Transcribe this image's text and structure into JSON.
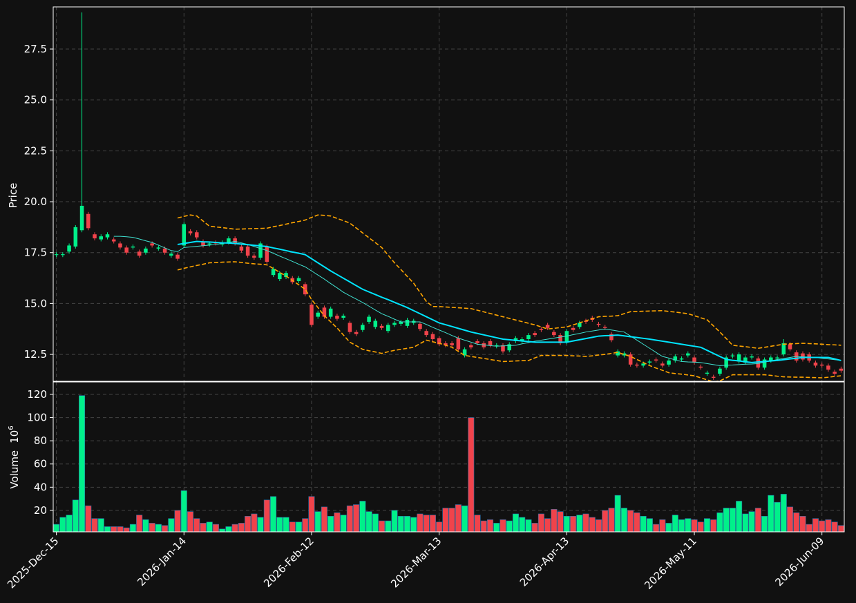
{
  "chart_data": {
    "type": "candlestick",
    "categories": [
      "2025-Dec-15",
      null,
      null,
      null,
      null,
      null,
      null,
      null,
      null,
      null,
      null,
      null,
      null,
      null,
      null,
      null,
      null,
      null,
      null,
      null,
      "2026-Jan-14",
      null,
      null,
      null,
      null,
      null,
      null,
      null,
      null,
      null,
      null,
      null,
      null,
      null,
      null,
      null,
      null,
      null,
      null,
      null,
      "2026-Feb-12",
      null,
      null,
      null,
      null,
      null,
      null,
      null,
      null,
      null,
      null,
      null,
      null,
      null,
      null,
      null,
      null,
      null,
      null,
      null,
      "2026-Mar-13",
      null,
      null,
      null,
      null,
      null,
      null,
      null,
      null,
      null,
      null,
      null,
      null,
      null,
      null,
      null,
      null,
      null,
      null,
      null,
      "2026-Apr-13",
      null,
      null,
      null,
      null,
      null,
      null,
      null,
      null,
      null,
      null,
      null,
      null,
      null,
      null,
      null,
      null,
      null,
      null,
      null,
      "2026-May-11",
      null,
      null,
      null,
      null,
      null,
      null,
      null,
      null,
      null,
      null,
      null,
      null,
      null,
      null,
      null,
      null,
      null,
      null,
      null,
      "2026-Jun-09",
      null,
      null,
      null
    ],
    "open": [
      17.38,
      17.38,
      17.55,
      17.8,
      18.6,
      19.4,
      18.4,
      18.15,
      18.25,
      18.15,
      17.95,
      17.75,
      17.75,
      17.55,
      17.5,
      17.95,
      17.7,
      17.7,
      17.35,
      17.4,
      17.85,
      18.55,
      18.5,
      18.05,
      17.9,
      18.0,
      17.9,
      18.0,
      18.2,
      17.8,
      17.8,
      17.35,
      17.25,
      17.8,
      16.4,
      16.2,
      16.3,
      16.25,
      16.1,
      15.95,
      14.95,
      14.35,
      14.8,
      14.35,
      14.4,
      14.3,
      14.05,
      13.6,
      13.7,
      14.1,
      13.85,
      13.9,
      13.65,
      13.95,
      14.0,
      13.9,
      14.05,
      14.0,
      13.65,
      13.5,
      13.3,
      13.05,
      13.05,
      13.3,
      12.45,
      12.95,
      13.15,
      13.05,
      13.15,
      12.9,
      12.95,
      12.7,
      13.15,
      13.15,
      13.25,
      13.55,
      13.75,
      13.95,
      13.6,
      13.45,
      13.1,
      13.8,
      13.85,
      14.15,
      14.3,
      14.0,
      13.85,
      13.5,
      12.45,
      12.45,
      12.5,
      12.0,
      11.95,
      12.1,
      12.25,
      12.05,
      12.0,
      12.2,
      12.25,
      12.45,
      12.35,
      11.9,
      11.55,
      11.4,
      11.55,
      11.85,
      12.4,
      12.15,
      12.1,
      12.35,
      12.3,
      11.85,
      12.2,
      12.3,
      12.5,
      13.0,
      12.6,
      12.55,
      12.5,
      12.1,
      12.0,
      11.95,
      11.65,
      11.8
    ],
    "high": [
      17.52,
      17.52,
      17.95,
      18.85,
      29.3,
      19.5,
      18.5,
      18.4,
      18.5,
      18.25,
      18.05,
      17.85,
      17.9,
      17.65,
      17.8,
      18.05,
      17.85,
      17.8,
      17.55,
      17.5,
      19.0,
      18.65,
      18.6,
      18.15,
      18.05,
      18.1,
      18.1,
      18.3,
      18.3,
      17.9,
      17.9,
      17.45,
      18.05,
      17.9,
      16.8,
      16.6,
      16.6,
      16.35,
      16.35,
      16.05,
      15.05,
      14.65,
      14.9,
      14.85,
      14.5,
      14.5,
      14.15,
      13.7,
      14.05,
      14.45,
      14.25,
      14.0,
      14.05,
      14.15,
      14.2,
      14.3,
      14.25,
      14.1,
      13.75,
      13.6,
      13.4,
      13.15,
      13.15,
      13.4,
      12.85,
      13.05,
      13.25,
      13.15,
      13.25,
      13.05,
      13.05,
      13.1,
      13.4,
      13.35,
      13.55,
      13.65,
      13.85,
      14.05,
      13.7,
      13.55,
      13.75,
      13.9,
      14.15,
      14.25,
      14.4,
      14.1,
      13.95,
      13.6,
      12.75,
      12.65,
      12.6,
      12.1,
      12.15,
      12.25,
      12.35,
      12.15,
      12.3,
      12.5,
      12.4,
      12.65,
      12.45,
      12.0,
      11.7,
      11.5,
      11.9,
      12.45,
      12.55,
      12.6,
      12.45,
      12.5,
      12.4,
      12.35,
      12.45,
      12.45,
      13.25,
      13.1,
      12.7,
      12.65,
      12.6,
      12.2,
      12.1,
      12.05,
      11.75,
      11.9
    ],
    "low": [
      17.28,
      17.28,
      17.45,
      17.7,
      18.5,
      18.6,
      18.1,
      18.05,
      18.15,
      17.95,
      17.65,
      17.4,
      17.65,
      17.25,
      17.4,
      17.75,
      17.6,
      17.4,
      17.25,
      17.1,
      17.75,
      18.35,
      18.15,
      17.75,
      17.8,
      17.85,
      17.8,
      17.9,
      17.85,
      17.5,
      17.25,
      17.15,
      17.15,
      16.95,
      16.3,
      16.1,
      16.2,
      15.95,
      16.0,
      15.35,
      13.85,
      14.25,
      14.25,
      14.25,
      14.15,
      14.2,
      13.5,
      13.4,
      13.6,
      14.0,
      13.75,
      13.7,
      13.55,
      13.85,
      13.9,
      13.8,
      13.95,
      13.65,
      13.35,
      13.15,
      12.9,
      12.85,
      12.85,
      12.65,
      12.35,
      12.75,
      12.95,
      12.75,
      12.85,
      12.8,
      12.55,
      12.6,
      13.05,
      13.05,
      13.15,
      13.35,
      13.6,
      13.7,
      13.35,
      12.95,
      13.0,
      13.6,
      13.75,
      14.0,
      14.1,
      13.85,
      13.7,
      13.1,
      12.35,
      12.35,
      11.9,
      11.85,
      11.85,
      12.0,
      12.1,
      11.85,
      11.9,
      12.1,
      12.15,
      12.35,
      12.0,
      11.75,
      11.45,
      11.25,
      11.45,
      11.75,
      12.3,
      12.05,
      12.0,
      12.25,
      11.75,
      11.75,
      12.1,
      12.2,
      12.4,
      12.65,
      12.1,
      12.15,
      12.1,
      11.85,
      11.85,
      11.65,
      11.45,
      11.6
    ],
    "close": [
      17.42,
      17.42,
      17.85,
      18.75,
      19.8,
      18.7,
      18.2,
      18.3,
      18.4,
      18.05,
      17.75,
      17.5,
      17.8,
      17.35,
      17.7,
      17.85,
      17.75,
      17.5,
      17.45,
      17.2,
      18.9,
      18.45,
      18.25,
      17.85,
      17.95,
      17.95,
      18.0,
      18.2,
      17.95,
      17.6,
      17.35,
      17.25,
      17.95,
      17.05,
      16.7,
      16.5,
      16.5,
      16.05,
      16.25,
      15.45,
      13.95,
      14.55,
      14.35,
      14.75,
      14.25,
      14.4,
      13.6,
      13.5,
      13.95,
      14.35,
      14.15,
      13.8,
      13.95,
      14.05,
      14.1,
      14.2,
      14.15,
      13.75,
      13.45,
      13.25,
      13.0,
      12.95,
      12.95,
      12.75,
      12.75,
      12.85,
      13.05,
      12.85,
      12.95,
      12.95,
      12.65,
      13.0,
      13.3,
      13.25,
      13.45,
      13.45,
      13.7,
      13.8,
      13.45,
      13.05,
      13.65,
      13.7,
      14.05,
      14.1,
      14.2,
      13.95,
      13.8,
      13.2,
      12.65,
      12.55,
      12.0,
      11.95,
      12.05,
      12.15,
      12.2,
      11.95,
      12.2,
      12.4,
      12.3,
      12.55,
      12.1,
      11.85,
      11.6,
      11.35,
      11.8,
      12.35,
      12.45,
      12.5,
      12.35,
      12.4,
      11.85,
      12.25,
      12.35,
      12.35,
      13.05,
      12.75,
      12.2,
      12.25,
      12.2,
      11.95,
      11.95,
      11.75,
      11.55,
      11.7
    ],
    "volume": [
      8,
      14,
      16,
      29,
      119,
      24,
      13,
      13,
      6,
      6,
      6,
      5,
      8,
      16,
      12,
      9,
      8,
      7,
      13,
      20,
      37,
      19,
      13,
      9,
      10,
      8,
      4,
      6,
      8,
      9,
      15,
      17,
      14,
      29,
      32,
      14,
      14,
      10,
      10,
      13,
      32,
      19,
      23,
      15,
      18,
      16,
      24,
      25,
      28,
      19,
      17,
      11,
      11,
      20,
      15,
      15,
      14,
      17,
      16,
      16,
      10,
      22,
      22,
      25,
      24,
      100,
      16,
      11,
      12,
      9,
      12,
      11,
      17,
      14,
      12,
      9,
      17,
      13,
      21,
      19,
      15,
      15,
      16,
      17,
      14,
      12,
      20,
      22,
      33,
      22,
      20,
      18,
      15,
      13,
      8,
      12,
      9,
      16,
      12,
      13,
      12,
      10,
      13,
      12,
      18,
      22,
      22,
      28,
      17,
      19,
      22,
      15,
      33,
      27,
      34,
      23,
      18,
      15,
      8,
      13,
      11,
      12,
      10,
      7
    ],
    "up_color": "#00f08a",
    "down_color": "#f0434b",
    "lines": [
      {
        "color": "#40e0d0",
        "width": 1,
        "style": "solid",
        "values": [
          null,
          null,
          null,
          null,
          null,
          null,
          null,
          null,
          null,
          18.3,
          18.3,
          18.28,
          18.25,
          18.17,
          18.08,
          18.0,
          17.87,
          17.73,
          17.6,
          17.55,
          17.75,
          17.78,
          17.81,
          17.84,
          17.87,
          17.9,
          17.95,
          18.0,
          18.05,
          17.98,
          17.9,
          17.8,
          17.7,
          17.6,
          17.47,
          17.33,
          17.2,
          17.07,
          16.93,
          16.8,
          16.6,
          16.4,
          16.2,
          15.98,
          15.77,
          15.55,
          15.38,
          15.22,
          15.05,
          14.87,
          14.68,
          14.5,
          14.37,
          14.23,
          14.1,
          14.1,
          14.1,
          14.1,
          13.97,
          13.83,
          13.7,
          13.57,
          13.43,
          13.3,
          13.2,
          13.1,
          13.0,
          12.97,
          12.93,
          12.9,
          12.92,
          12.93,
          12.95,
          13.02,
          13.08,
          13.15,
          13.2,
          13.25,
          13.3,
          13.35,
          13.4,
          13.47,
          13.53,
          13.6,
          13.65,
          13.7,
          13.75,
          13.7,
          13.65,
          13.6,
          13.4,
          13.2,
          13.0,
          12.8,
          12.6,
          12.4,
          12.32,
          12.23,
          12.15,
          12.13,
          12.12,
          12.1,
          12.05,
          12.0,
          11.95,
          11.97,
          11.98,
          12.0,
          12.02,
          12.03,
          12.05,
          12.12,
          12.18,
          12.25,
          12.3,
          12.35,
          12.4,
          12.38,
          12.37,
          12.35,
          12.31,
          12.28,
          12.24,
          12.2
        ]
      },
      {
        "color": "#00e5ff",
        "width": 2,
        "style": "solid",
        "values": [
          null,
          null,
          null,
          null,
          null,
          null,
          null,
          null,
          null,
          null,
          null,
          null,
          null,
          null,
          null,
          null,
          null,
          null,
          null,
          17.9,
          17.95,
          18.0,
          18.05,
          18.03,
          18.02,
          18.0,
          17.98,
          17.97,
          17.95,
          17.92,
          17.89,
          17.86,
          17.83,
          17.8,
          17.73,
          17.67,
          17.6,
          17.53,
          17.47,
          17.4,
          17.2,
          17.0,
          16.8,
          16.6,
          16.42,
          16.24,
          16.06,
          15.88,
          15.7,
          15.57,
          15.44,
          15.31,
          15.19,
          15.06,
          14.93,
          14.8,
          14.65,
          14.5,
          14.35,
          14.2,
          14.05,
          13.96,
          13.87,
          13.78,
          13.69,
          13.6,
          13.53,
          13.46,
          13.39,
          13.32,
          13.25,
          13.22,
          13.19,
          13.16,
          13.13,
          13.1,
          13.1,
          13.1,
          13.1,
          13.1,
          13.1,
          13.16,
          13.22,
          13.28,
          13.34,
          13.4,
          13.42,
          13.43,
          13.45,
          13.41,
          13.37,
          13.33,
          13.29,
          13.25,
          13.2,
          13.15,
          13.1,
          13.05,
          13.0,
          12.95,
          12.9,
          12.85,
          12.7,
          12.55,
          12.4,
          12.25,
          12.21,
          12.18,
          12.14,
          12.1,
          12.13,
          12.15,
          12.18,
          12.2,
          12.24,
          12.28,
          12.31,
          12.35,
          12.35,
          12.35,
          12.35,
          12.35,
          12.28,
          12.2
        ]
      },
      {
        "color": "#ffa500",
        "width": 1.6,
        "style": "dashed",
        "values": [
          null,
          null,
          null,
          null,
          null,
          null,
          null,
          null,
          null,
          null,
          null,
          null,
          null,
          null,
          null,
          null,
          null,
          null,
          null,
          19.2,
          19.28,
          19.35,
          19.3,
          19.05,
          18.8,
          18.76,
          18.73,
          18.69,
          18.65,
          18.66,
          18.67,
          18.68,
          18.69,
          18.7,
          18.77,
          18.83,
          18.9,
          18.97,
          19.03,
          19.1,
          19.23,
          19.35,
          19.33,
          19.3,
          19.18,
          19.07,
          18.95,
          18.71,
          18.47,
          18.23,
          17.99,
          17.75,
          17.38,
          17.0,
          16.67,
          16.33,
          16.0,
          15.55,
          15.1,
          14.85,
          14.85,
          14.83,
          14.81,
          14.79,
          14.77,
          14.75,
          14.67,
          14.59,
          14.51,
          14.43,
          14.35,
          14.27,
          14.19,
          14.11,
          14.03,
          13.95,
          13.85,
          13.75,
          13.78,
          13.82,
          13.85,
          13.95,
          14.05,
          14.15,
          14.25,
          14.35,
          14.37,
          14.38,
          14.4,
          14.5,
          14.6,
          14.61,
          14.62,
          14.63,
          14.64,
          14.65,
          14.61,
          14.58,
          14.54,
          14.5,
          14.4,
          14.3,
          14.2,
          13.9,
          13.6,
          13.28,
          12.95,
          12.91,
          12.88,
          12.84,
          12.8,
          12.85,
          12.9,
          12.95,
          13.0,
          13.02,
          13.03,
          13.05,
          13.03,
          13.02,
          13.0,
          12.98,
          12.97,
          12.95
        ]
      },
      {
        "color": "#ffa500",
        "width": 1.6,
        "style": "dashed",
        "values": [
          null,
          null,
          null,
          null,
          null,
          null,
          null,
          null,
          null,
          null,
          null,
          null,
          null,
          null,
          null,
          null,
          null,
          null,
          null,
          16.65,
          16.73,
          16.8,
          16.87,
          16.93,
          17.0,
          17.01,
          17.03,
          17.04,
          17.05,
          17.02,
          16.98,
          16.95,
          16.93,
          16.9,
          16.72,
          16.53,
          16.35,
          16.13,
          15.92,
          15.7,
          15.2,
          14.8,
          14.4,
          14.1,
          13.8,
          13.45,
          13.1,
          12.93,
          12.75,
          12.68,
          12.62,
          12.55,
          12.63,
          12.7,
          12.75,
          12.8,
          12.85,
          13.03,
          13.2,
          13.12,
          13.05,
          12.95,
          12.85,
          12.65,
          12.45,
          12.4,
          12.35,
          12.3,
          12.25,
          12.2,
          12.15,
          12.16,
          12.18,
          12.19,
          12.2,
          12.33,
          12.45,
          12.45,
          12.45,
          12.45,
          12.45,
          12.43,
          12.42,
          12.4,
          12.43,
          12.47,
          12.5,
          12.55,
          12.6,
          12.5,
          12.4,
          12.25,
          12.1,
          11.95,
          11.83,
          11.72,
          11.6,
          11.56,
          11.53,
          11.49,
          11.45,
          11.35,
          11.25,
          11.15,
          11.2,
          11.35,
          11.5,
          11.5,
          11.5,
          11.5,
          11.5,
          11.5,
          11.47,
          11.43,
          11.4,
          11.39,
          11.38,
          11.38,
          11.37,
          11.36,
          11.35,
          11.38,
          11.42,
          11.45
        ]
      }
    ],
    "ylabel": "Price",
    "ylim": [
      11.18,
      29.57
    ],
    "yticks": [
      12.5,
      {
        "value": 15,
        "label": "15.0"
      },
      17.5,
      {
        "value": 20,
        "label": "20.0"
      },
      22.5,
      {
        "value": 25,
        "label": "25.0"
      },
      27.5
    ],
    "volume_label": "Volume",
    "volume_unit_base": "10",
    "volume_unit_exponent": "6",
    "vlim": [
      1.5,
      130.7
    ],
    "vticks": [
      20,
      40,
      60,
      80,
      100,
      120
    ],
    "grid": true
  }
}
